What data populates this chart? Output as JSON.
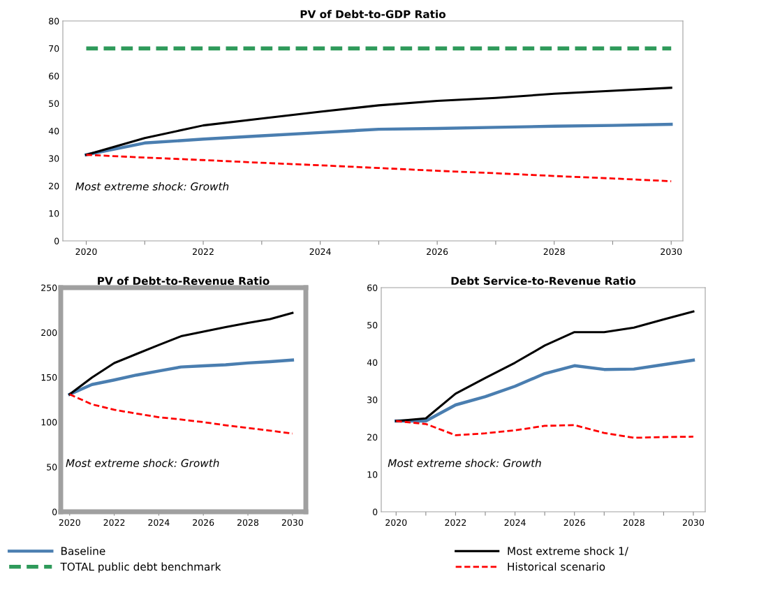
{
  "chart_data": [
    {
      "type": "line",
      "title": "PV of Debt-to-GDP Ratio",
      "x": [
        2020,
        2021,
        2022,
        2023,
        2024,
        2025,
        2026,
        2027,
        2028,
        2029,
        2030
      ],
      "xlim": [
        2019.6,
        2030.2
      ],
      "xticks": [
        2020,
        {
          "value": 2021,
          "label": null
        },
        2022,
        {
          "value": 2023,
          "label": null
        },
        2024,
        {
          "value": 2025,
          "label": null
        },
        2026,
        {
          "value": 2027,
          "label": null
        },
        2028,
        {
          "value": 2029,
          "label": null
        },
        2030
      ],
      "ylim": [
        0,
        80
      ],
      "yticks": [
        0,
        10,
        20,
        30,
        40,
        50,
        60,
        70,
        80
      ],
      "grid": false,
      "legend": "bottom",
      "annotations": [
        "Most extreme shock: Growth"
      ],
      "series": [
        {
          "name": "Baseline",
          "color": "#4a7eb0",
          "line_style": "solid",
          "values": [
            31.3,
            35.6,
            37.0,
            38.2,
            39.4,
            40.6,
            40.9,
            41.3,
            41.7,
            42.0,
            42.4
          ]
        },
        {
          "name": "TOTAL public debt benchmark",
          "color": "#2e9a5a",
          "line_style": "dashed",
          "values": [
            70,
            70,
            70,
            70,
            70,
            70,
            70,
            70,
            70,
            70,
            70
          ]
        },
        {
          "name": "Most extreme shock 1/",
          "color": "#000000",
          "line_style": "solid",
          "values": [
            31.3,
            37.4,
            42.0,
            44.5,
            47.0,
            49.3,
            50.9,
            52.0,
            53.5,
            54.6,
            55.7
          ]
        },
        {
          "name": "Historical scenario",
          "color": "#ff0000",
          "line_style": "dashed",
          "values": [
            31.3,
            30.3,
            29.4,
            28.4,
            27.5,
            26.5,
            25.5,
            24.6,
            23.6,
            22.7,
            21.7
          ]
        }
      ]
    },
    {
      "type": "line",
      "title": "PV of Debt-to-Revenue Ratio",
      "x": [
        2020,
        2021,
        2022,
        2023,
        2024,
        2025,
        2026,
        2027,
        2028,
        2029,
        2030
      ],
      "xlim": [
        2019.6,
        2030.6
      ],
      "xticks": [
        2020,
        2022,
        2024,
        2026,
        2028,
        2030
      ],
      "ylim": [
        0,
        250
      ],
      "yticks": [
        0,
        50,
        100,
        150,
        200,
        250
      ],
      "grid": false,
      "annotations": [
        "Most extreme shock: Growth"
      ],
      "series": [
        {
          "color": "#4a7eb0",
          "line_style": "solid",
          "values": [
            131,
            141.9,
            147,
            152.5,
            157,
            161.5,
            162.8,
            164,
            166,
            167.5,
            169.3
          ]
        },
        {
          "color": "#000000",
          "line_style": "solid",
          "values": [
            131,
            149.7,
            165.9,
            176,
            186,
            195.8,
            201,
            206,
            210.6,
            215,
            221.9
          ]
        },
        {
          "color": "#ff0000",
          "line_style": "dashed",
          "values": [
            131,
            119.8,
            113.8,
            109.5,
            105.5,
            102.9,
            100,
            96.5,
            93.5,
            90.5,
            87.2
          ]
        }
      ]
    },
    {
      "type": "line",
      "title": "Debt Service-to-Revenue Ratio",
      "x": [
        2020,
        2021,
        2022,
        2023,
        2024,
        2025,
        2026,
        2027,
        2028,
        2029,
        2030
      ],
      "xlim": [
        2019.5,
        2030.4
      ],
      "xticks": [
        2020,
        {
          "value": 2021,
          "label": null
        },
        2022,
        {
          "value": 2023,
          "label": null
        },
        2024,
        {
          "value": 2025,
          "label": null
        },
        2026,
        {
          "value": 2027,
          "label": null
        },
        2028,
        {
          "value": 2029,
          "label": null
        },
        2030
      ],
      "ylim": [
        0,
        60
      ],
      "yticks": [
        0,
        10,
        20,
        30,
        40,
        50,
        60
      ],
      "grid": false,
      "annotations": [
        "Most extreme shock: Growth"
      ],
      "series": [
        {
          "color": "#4a7eb0",
          "line_style": "solid",
          "values": [
            24.3,
            24.3,
            28.6,
            30.8,
            33.6,
            37.0,
            39.1,
            38.1,
            38.2,
            39.4,
            40.6
          ]
        },
        {
          "color": "#000000",
          "line_style": "solid",
          "values": [
            24.3,
            25.0,
            31.6,
            35.8,
            39.9,
            44.5,
            48.1,
            48.1,
            49.3,
            51.5,
            53.6
          ]
        },
        {
          "color": "#ff0000",
          "line_style": "dashed",
          "values": [
            24.3,
            23.5,
            20.5,
            21.0,
            21.8,
            23.0,
            23.2,
            21.1,
            19.8,
            20.0,
            20.1
          ]
        }
      ]
    }
  ]
}
